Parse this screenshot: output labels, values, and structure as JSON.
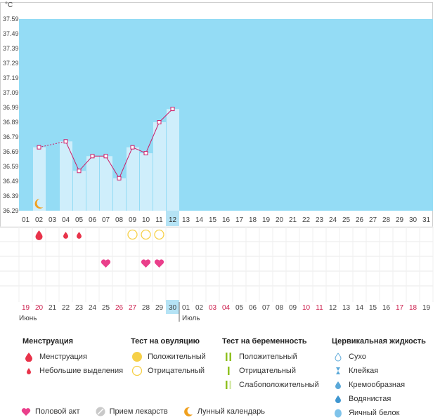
{
  "unit": "°C",
  "colors": {
    "plot_bg": "#94dcf5",
    "bar_fill": "#cfeefb",
    "line": "#cc1a66",
    "accent_red": "#e8334a",
    "heart": "#ea3f8b",
    "ovulation": "#f6d048",
    "pregnancy": "#8fc01f",
    "moon": "#f0a01e",
    "today": "#b5e3f5",
    "weekend": "#cc1f4d"
  },
  "chart_data": {
    "type": "bar",
    "ylim": [
      36.29,
      37.59
    ],
    "y_ticks": [
      "37.59",
      "37.49",
      "37.39",
      "37.29",
      "37.19",
      "37.09",
      "36.99",
      "36.89",
      "36.79",
      "36.69",
      "36.59",
      "36.49",
      "36.39",
      "36.29"
    ],
    "day_labels": [
      "01",
      "02",
      "03",
      "04",
      "05",
      "06",
      "07",
      "08",
      "09",
      "10",
      "11",
      "12",
      "13",
      "14",
      "15",
      "16",
      "17",
      "18",
      "19",
      "20",
      "21",
      "22",
      "23",
      "24",
      "25",
      "26",
      "27",
      "28",
      "29",
      "30",
      "31"
    ],
    "values": [
      null,
      36.72,
      null,
      36.76,
      36.56,
      36.66,
      36.66,
      36.51,
      36.72,
      36.68,
      36.89,
      36.98
    ],
    "today_index": 11,
    "date_labels": [
      "19",
      "20",
      "21",
      "22",
      "23",
      "24",
      "25",
      "26",
      "27",
      "28",
      "29",
      "30",
      "01",
      "02",
      "03",
      "04",
      "05",
      "06",
      "07",
      "08",
      "09",
      "10",
      "11",
      "12",
      "13",
      "14",
      "15",
      "16",
      "17",
      "18",
      "19"
    ],
    "weekend_indices": [
      0,
      1,
      7,
      8,
      14,
      15,
      21,
      22,
      28,
      29
    ],
    "today_date_index": 11,
    "month_labels": [
      {
        "index": 0,
        "text": "Июнь"
      },
      {
        "index": 12,
        "text": "Июль"
      }
    ],
    "moon_index": 1,
    "menstruation": [
      {
        "index": 1,
        "size": "large"
      },
      {
        "index": 3,
        "size": "small"
      },
      {
        "index": 4,
        "size": "small"
      }
    ],
    "ovulation_negative": [
      8,
      9,
      10
    ],
    "intercourse": [
      6,
      9,
      10
    ]
  },
  "legend": {
    "menstruation": {
      "title": "Менструация",
      "items": [
        "Менструация",
        "Небольшие выделения"
      ]
    },
    "ovulation": {
      "title": "Тест на овуляцию",
      "items": [
        "Положительный",
        "Отрицательный"
      ]
    },
    "pregnancy": {
      "title": "Тест на беременность",
      "items": [
        "Положительный",
        "Отрицательный",
        "Слабоположительный"
      ]
    },
    "cervical": {
      "title": "Цервикальная жидкость",
      "items": [
        "Сухо",
        "Клейкая",
        "Кремообразная",
        "Водянистая",
        "Яичный белок"
      ]
    },
    "bottom": [
      "Половой акт",
      "Прием лекарств",
      "Лунный календарь"
    ]
  }
}
